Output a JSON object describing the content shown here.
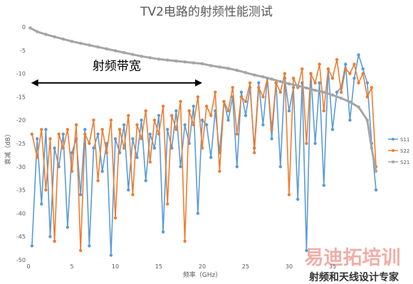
{
  "chart_data": {
    "type": "line",
    "title": "TV2电路的射频性能测试",
    "xlabel": "频率（GHz）",
    "ylabel": "衰减（dB）",
    "xlim": [
      0,
      40
    ],
    "ylim": [
      -50,
      0
    ],
    "xticks": [
      0,
      5,
      10,
      15,
      20,
      25,
      30,
      35
    ],
    "yticks": [
      0,
      -5,
      -10,
      -15,
      -20,
      -25,
      -30,
      -35,
      -40,
      -45,
      -50
    ],
    "xtick_labels": [
      "0",
      "5",
      "10",
      "15",
      "20",
      "25",
      "30",
      "35"
    ],
    "ytick_labels": [
      "0",
      "-5",
      "-10",
      "-15",
      "-20",
      "-25",
      "-30",
      "-35",
      "-40",
      "-45",
      "-50"
    ],
    "grid": false,
    "legend_position": "right",
    "series": [
      {
        "name": "S11",
        "color": "#5b9bd5",
        "marker": "circle",
        "x": [
          0.4,
          1.0,
          1.5,
          2.0,
          2.5,
          3.0,
          3.5,
          4.0,
          4.5,
          5.0,
          5.5,
          6.0,
          6.5,
          7.0,
          7.5,
          8.0,
          8.5,
          9.0,
          9.5,
          10.0,
          10.5,
          11.0,
          11.5,
          12.0,
          12.5,
          13.0,
          13.5,
          14.0,
          14.5,
          15.0,
          15.5,
          16.0,
          16.5,
          17.0,
          17.5,
          18.0,
          18.5,
          19.0,
          19.5,
          20.0,
          20.5,
          21.0,
          21.5,
          22.0,
          22.5,
          23.0,
          23.5,
          24.0,
          24.5,
          25.0,
          25.5,
          26.0,
          26.5,
          27.0,
          27.5,
          28.0,
          28.5,
          29.0,
          29.5,
          30.0,
          30.5,
          31.0,
          31.5,
          32.0,
          32.5,
          33.0,
          33.5,
          34.0,
          34.5,
          35.0,
          35.5,
          36.0,
          36.5,
          37.0,
          37.5,
          38.0,
          38.5,
          39.0,
          39.5,
          40.0
        ],
        "y": [
          -47,
          -24,
          -38,
          -22,
          -45,
          -26,
          -30,
          -23,
          -43,
          -27,
          -24,
          -36,
          -22,
          -47,
          -26,
          -23,
          -31,
          -25,
          -49,
          -24,
          -27,
          -21,
          -35,
          -24,
          -28,
          -20,
          -33,
          -23,
          -26,
          -19,
          -44,
          -22,
          -26,
          -18,
          -30,
          -21,
          -25,
          -17,
          -40,
          -20,
          -21,
          -28,
          -18,
          -27,
          -16,
          -20,
          -15,
          -30,
          -14,
          -19,
          -13,
          -26,
          -12,
          -21,
          -11,
          -24,
          -12,
          -30,
          -11,
          -18,
          -13,
          -37,
          -12,
          -48,
          -10,
          -25,
          -12,
          -34,
          -9,
          -22,
          -14,
          -13,
          -8,
          -20,
          -11,
          -6,
          -9,
          -12,
          -25,
          -35
        ]
      },
      {
        "name": "S22",
        "color": "#ed7d31",
        "marker": "circle",
        "x": [
          0.4,
          1.0,
          1.5,
          2.0,
          2.5,
          3.0,
          3.5,
          4.0,
          4.5,
          5.0,
          5.5,
          6.0,
          6.5,
          7.0,
          7.5,
          8.0,
          8.5,
          9.0,
          9.5,
          10.0,
          10.5,
          11.0,
          11.5,
          12.0,
          12.5,
          13.0,
          13.5,
          14.0,
          14.5,
          15.0,
          15.5,
          16.0,
          16.5,
          17.0,
          17.5,
          18.0,
          18.5,
          19.0,
          19.5,
          20.0,
          20.5,
          21.0,
          21.5,
          22.0,
          22.5,
          23.0,
          23.5,
          24.0,
          24.5,
          25.0,
          25.5,
          26.0,
          26.5,
          27.0,
          27.5,
          28.0,
          28.5,
          29.0,
          29.5,
          30.0,
          30.5,
          31.0,
          31.5,
          32.0,
          32.5,
          33.0,
          33.5,
          34.0,
          34.5,
          35.0,
          35.5,
          36.0,
          36.5,
          37.0,
          37.5,
          38.0,
          38.5,
          39.0,
          39.5,
          40.0
        ],
        "y": [
          -23,
          -28,
          -22,
          -35,
          -24,
          -46,
          -23,
          -26,
          -22,
          -31,
          -21,
          -48,
          -23,
          -25,
          -20,
          -33,
          -22,
          -27,
          -20,
          -41,
          -22,
          -26,
          -19,
          -36,
          -21,
          -24,
          -18,
          -29,
          -20,
          -23,
          -17,
          -38,
          -19,
          -22,
          -16,
          -46,
          -18,
          -21,
          -15,
          -26,
          -17,
          -19,
          -14,
          -31,
          -16,
          -18,
          -13,
          -23,
          -15,
          -16,
          -12,
          -27,
          -13,
          -15,
          -11,
          -22,
          -12,
          -14,
          -10,
          -36,
          -11,
          -13,
          -9,
          -25,
          -10,
          -12,
          -8,
          -18,
          -9,
          -11,
          -7,
          -14,
          -9,
          -10,
          -8,
          -12,
          -10,
          -15,
          -13,
          -30
        ]
      },
      {
        "name": "S21",
        "color": "#a5a5a5",
        "marker": "circle",
        "x": [
          0.2,
          1,
          2,
          3,
          4,
          5,
          6,
          7,
          8,
          9,
          10,
          11,
          12,
          13,
          14,
          15,
          16,
          17,
          18,
          19,
          20,
          21,
          22,
          23,
          24,
          25,
          26,
          27,
          28,
          29,
          30,
          31,
          32,
          33,
          34,
          35,
          36,
          37,
          38,
          39,
          39.5,
          40
        ],
        "y": [
          -0.2,
          -1.0,
          -1.6,
          -2.1,
          -2.6,
          -3.1,
          -3.5,
          -3.9,
          -4.3,
          -4.7,
          -5.1,
          -5.5,
          -5.9,
          -6.3,
          -6.6,
          -6.9,
          -7.1,
          -7.3,
          -7.5,
          -7.7,
          -7.9,
          -8.3,
          -8.6,
          -8.9,
          -9.3,
          -9.8,
          -10.3,
          -10.7,
          -11.2,
          -11.7,
          -12.2,
          -12.6,
          -13.1,
          -13.6,
          -14.0,
          -14.6,
          -15.3,
          -16.1,
          -17.2,
          -20,
          -26,
          -31
        ]
      }
    ],
    "annotations": [
      {
        "text": "射频带宽",
        "x_from": 0.3,
        "x_to": 20,
        "y": -12
      }
    ]
  },
  "watermark": {
    "line1": "易迪拓培训",
    "line2": "射频和天线设计专家"
  }
}
